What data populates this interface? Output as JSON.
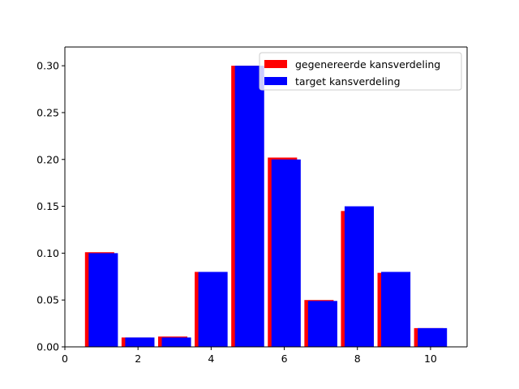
{
  "chart_data": {
    "type": "bar",
    "xlim": [
      0,
      11
    ],
    "ylim": [
      0,
      0.32
    ],
    "xticks": [
      0,
      2,
      4,
      6,
      8,
      10
    ],
    "xtick_labels": [
      "0",
      "2",
      "4",
      "6",
      "8",
      "10"
    ],
    "yticks": [
      0.0,
      0.05,
      0.1,
      0.15,
      0.2,
      0.25,
      0.3
    ],
    "ytick_labels": [
      "0.00",
      "0.05",
      "0.10",
      "0.15",
      "0.20",
      "0.25",
      "0.30"
    ],
    "grid": false,
    "legend": {
      "placement": "top-right"
    },
    "series": [
      {
        "name": "gegenereerde kansverdeling",
        "color": "#ff0000",
        "x": [
          1,
          2,
          3,
          4,
          5,
          6,
          7,
          8,
          9,
          10
        ],
        "values": [
          0.101,
          0.01,
          0.011,
          0.08,
          0.3,
          0.202,
          0.05,
          0.145,
          0.079,
          0.02
        ]
      },
      {
        "name": "target kansverdeling",
        "color": "#0000ff",
        "x": [
          1,
          2,
          3,
          4,
          5,
          6,
          7,
          8,
          9,
          10
        ],
        "values": [
          0.1,
          0.01,
          0.01,
          0.08,
          0.3,
          0.2,
          0.049,
          0.15,
          0.08,
          0.02
        ]
      }
    ]
  }
}
